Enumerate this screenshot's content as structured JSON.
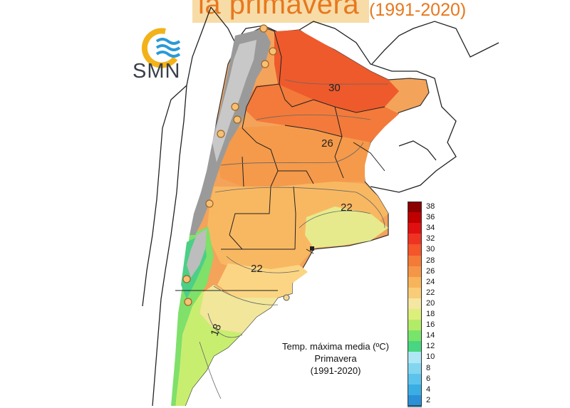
{
  "header": {
    "title_main": "la primavera",
    "title_years": "(1991-2020)"
  },
  "logo": {
    "text": "SMN",
    "ring_color": "#f2b21a",
    "wave_color": "#2a9ad8"
  },
  "map": {
    "isotherm_labels": [
      "30",
      "26",
      "22",
      "22",
      "18"
    ]
  },
  "legend": {
    "values": [
      "38",
      "36",
      "34",
      "32",
      "30",
      "28",
      "26",
      "24",
      "22",
      "20",
      "18",
      "16",
      "14",
      "12",
      "10",
      "8",
      "6",
      "4",
      "2"
    ],
    "colors": [
      "#8b0000",
      "#c00000",
      "#e01010",
      "#ee3322",
      "#f4552a",
      "#f47a38",
      "#f59548",
      "#f8b45a",
      "#f9cc78",
      "#f5e6a2",
      "#dcef7a",
      "#b2ec66",
      "#78e46a",
      "#48d680",
      "#aee8f6",
      "#82d6f0",
      "#5cc4ec",
      "#3aaee4",
      "#2a90d8"
    ]
  },
  "caption": {
    "line1": "Temp. máxima media (ºC)",
    "line2": "Primavera",
    "line3": "(1991-2020)"
  }
}
